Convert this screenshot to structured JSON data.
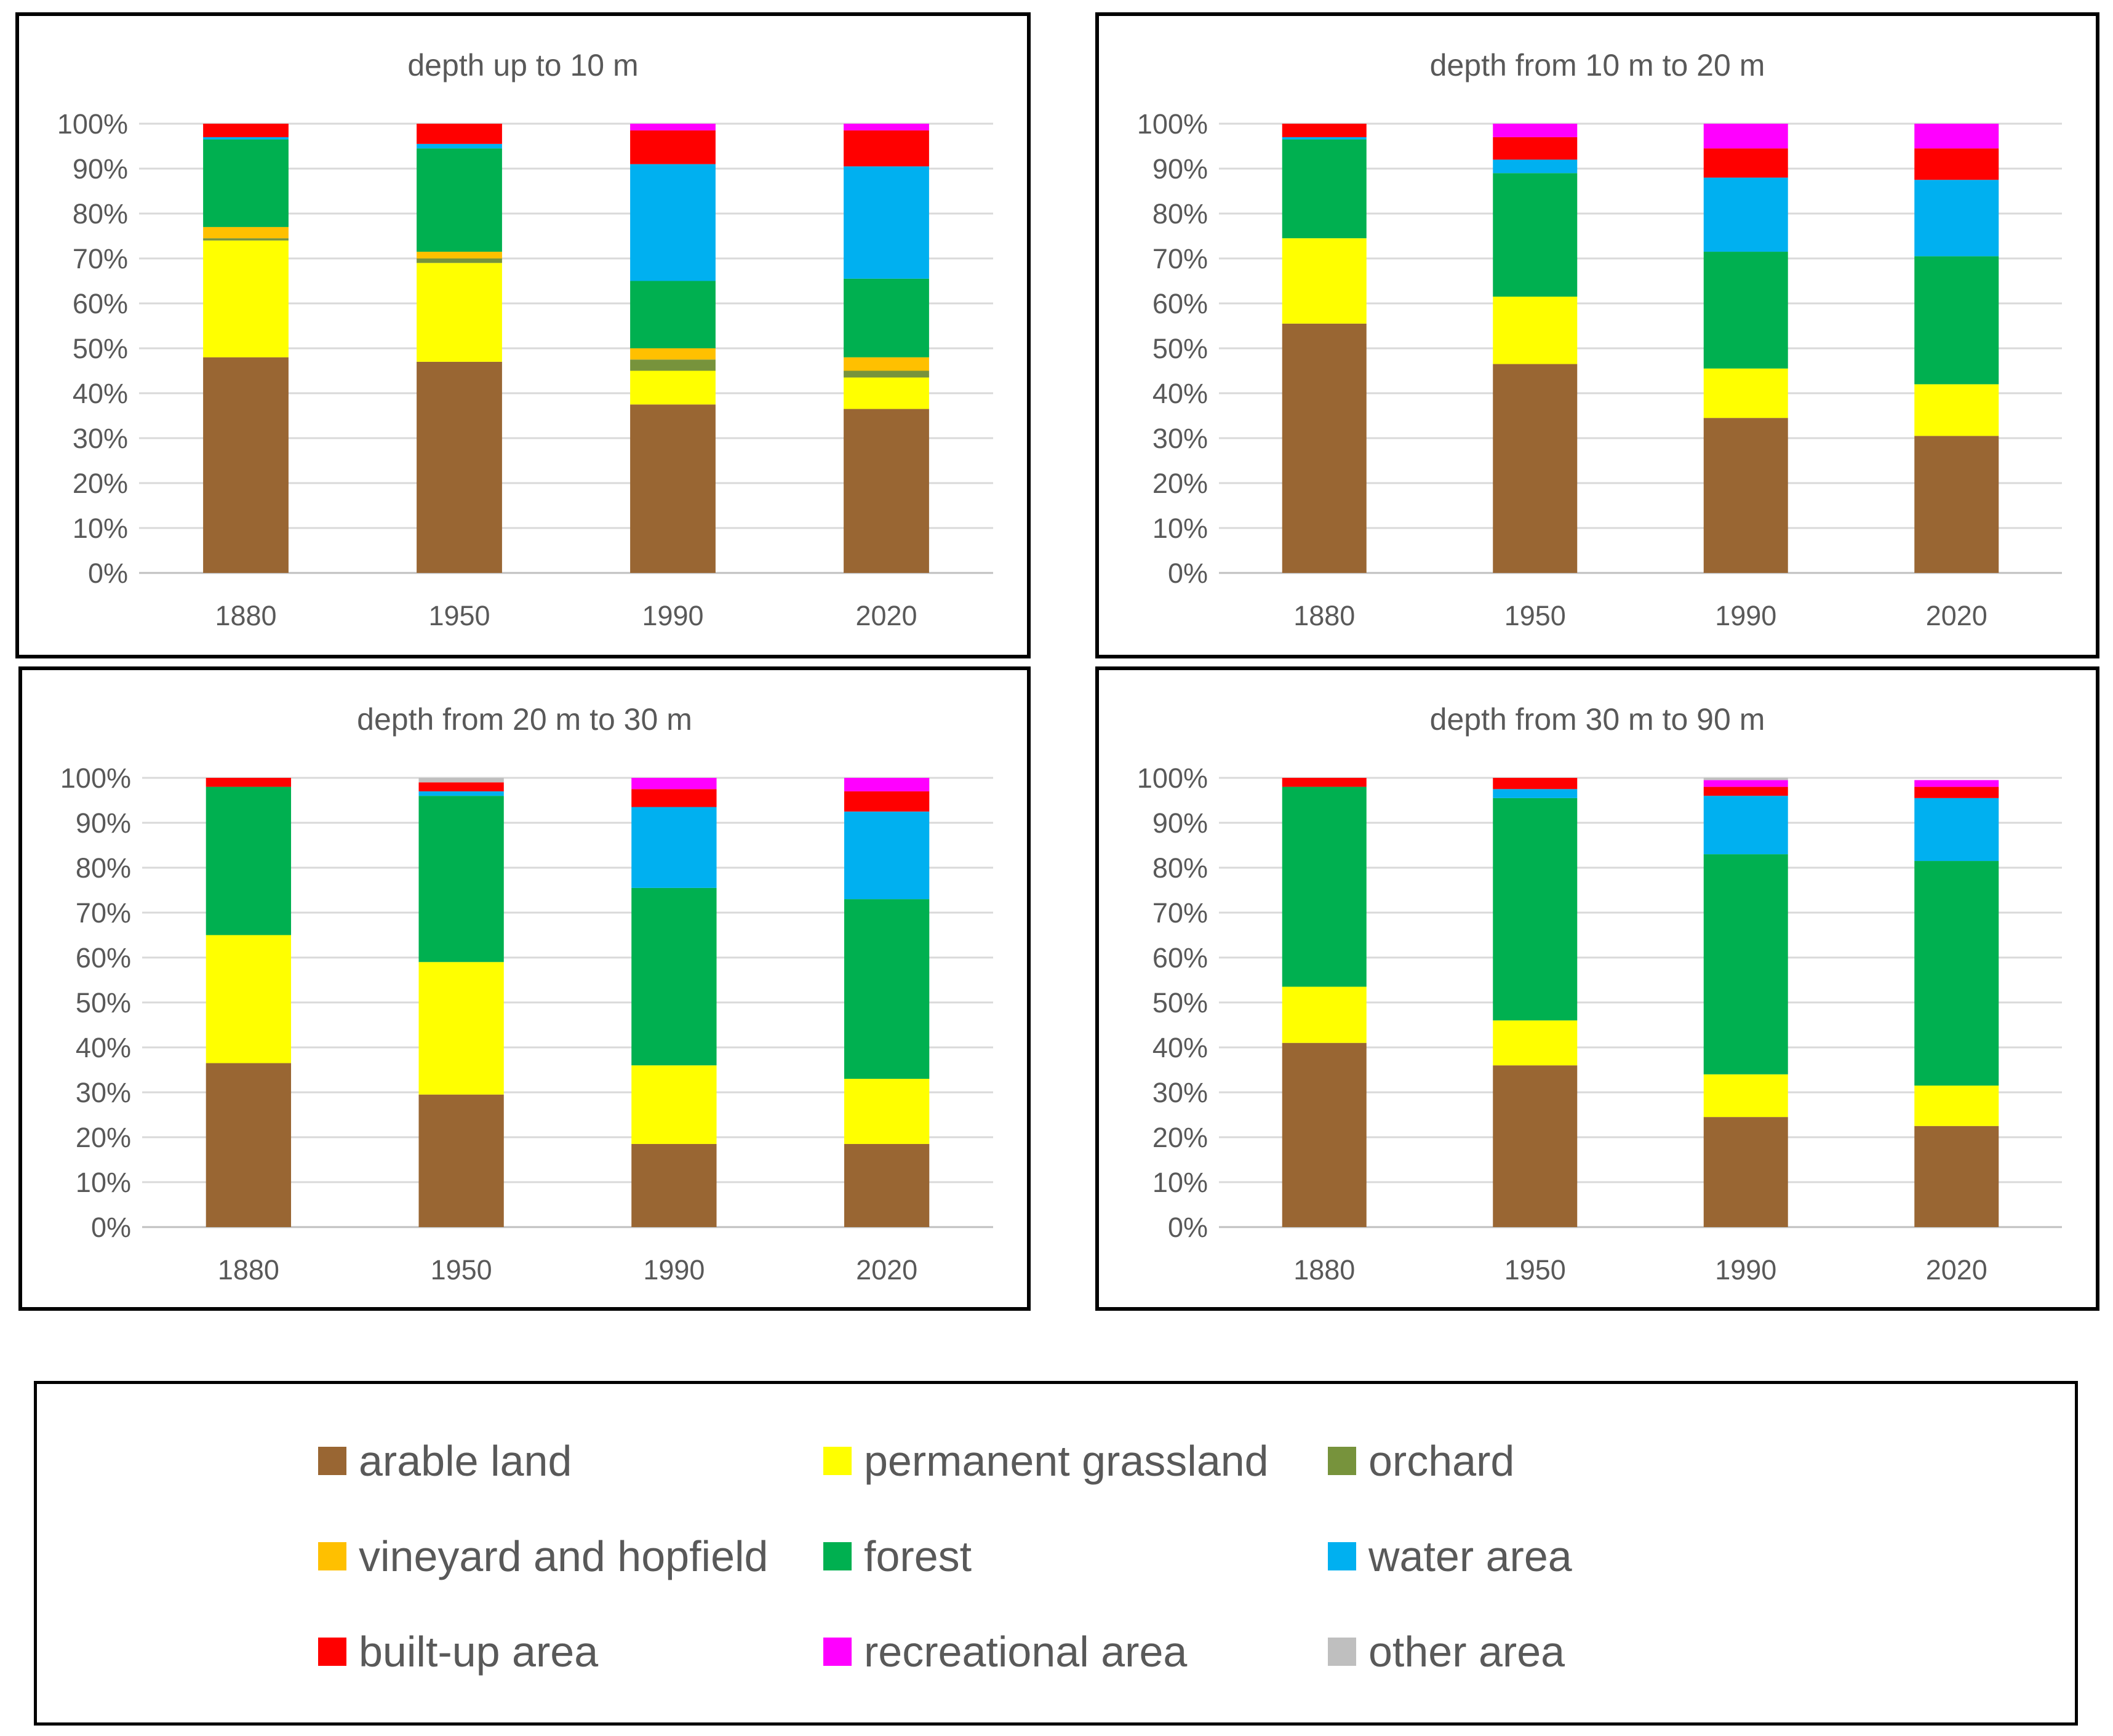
{
  "categories": [
    {
      "key": "arable",
      "name": "arable land",
      "color": "#996633"
    },
    {
      "key": "grassland",
      "name": "permanent grassland",
      "color": "#FFFF00"
    },
    {
      "key": "orchard",
      "name": "orchard",
      "color": "#77933C"
    },
    {
      "key": "vineyard",
      "name": "vineyard and hopfield",
      "color": "#FFC000"
    },
    {
      "key": "forest",
      "name": "forest",
      "color": "#00B050"
    },
    {
      "key": "water",
      "name": "water area",
      "color": "#00B0F0"
    },
    {
      "key": "builtup",
      "name": "built-up area",
      "color": "#FF0000"
    },
    {
      "key": "recreational",
      "name": "recreational area",
      "color": "#FF00FF"
    },
    {
      "key": "other",
      "name": "other area",
      "color": "#BFBFBF"
    }
  ],
  "chart_data": [
    {
      "type": "bar",
      "stacked": true,
      "title": "depth up to 10 m",
      "categories": [
        "1880",
        "1950",
        "1990",
        "2020"
      ],
      "y_ticks": [
        "0%",
        "10%",
        "20%",
        "30%",
        "40%",
        "50%",
        "60%",
        "70%",
        "80%",
        "90%",
        "100%"
      ],
      "ylim": [
        0,
        100
      ],
      "series": [
        {
          "name": "arable land",
          "values": [
            48,
            47,
            37.5,
            36.5
          ]
        },
        {
          "name": "permanent grassland",
          "values": [
            26,
            22,
            7.5,
            7
          ]
        },
        {
          "name": "orchard",
          "values": [
            0.5,
            1,
            2.5,
            1.5
          ]
        },
        {
          "name": "vineyard and hopfield",
          "values": [
            2.5,
            1.5,
            2.5,
            3
          ]
        },
        {
          "name": "forest",
          "values": [
            19.5,
            23,
            15,
            17.5
          ]
        },
        {
          "name": "water area",
          "values": [
            0.5,
            1,
            26,
            25
          ]
        },
        {
          "name": "built-up area",
          "values": [
            3,
            4.5,
            7.5,
            8
          ]
        },
        {
          "name": "recreational area",
          "values": [
            0,
            0,
            1.5,
            1.5
          ]
        },
        {
          "name": "other area",
          "values": [
            0,
            0,
            0,
            0
          ]
        }
      ]
    },
    {
      "type": "bar",
      "stacked": true,
      "title": "depth from 10 m to 20 m",
      "categories": [
        "1880",
        "1950",
        "1990",
        "2020"
      ],
      "y_ticks": [
        "0%",
        "10%",
        "20%",
        "30%",
        "40%",
        "50%",
        "60%",
        "70%",
        "80%",
        "90%",
        "100%"
      ],
      "ylim": [
        0,
        100
      ],
      "series": [
        {
          "name": "arable land",
          "values": [
            55.5,
            46.5,
            34.5,
            30.5
          ]
        },
        {
          "name": "permanent grassland",
          "values": [
            19,
            15,
            11,
            11.5
          ]
        },
        {
          "name": "orchard",
          "values": [
            0,
            0,
            0,
            0
          ]
        },
        {
          "name": "vineyard and hopfield",
          "values": [
            0,
            0,
            0,
            0
          ]
        },
        {
          "name": "forest",
          "values": [
            22,
            27.5,
            26,
            28.5
          ]
        },
        {
          "name": "water area",
          "values": [
            0.5,
            3,
            16.5,
            17
          ]
        },
        {
          "name": "built-up area",
          "values": [
            3,
            5,
            6.5,
            7
          ]
        },
        {
          "name": "recreational area",
          "values": [
            0,
            3,
            5.5,
            5.5
          ]
        },
        {
          "name": "other area",
          "values": [
            0,
            0,
            0,
            0
          ]
        }
      ]
    },
    {
      "type": "bar",
      "stacked": true,
      "title": "depth from 20 m to 30 m",
      "categories": [
        "1880",
        "1950",
        "1990",
        "2020"
      ],
      "y_ticks": [
        "0%",
        "10%",
        "20%",
        "30%",
        "40%",
        "50%",
        "60%",
        "70%",
        "80%",
        "90%",
        "100%"
      ],
      "ylim": [
        0,
        100
      ],
      "series": [
        {
          "name": "arable land",
          "values": [
            36.5,
            29.5,
            18.5,
            18.5
          ]
        },
        {
          "name": "permanent grassland",
          "values": [
            28.5,
            29.5,
            17.5,
            14.5
          ]
        },
        {
          "name": "orchard",
          "values": [
            0,
            0,
            0,
            0
          ]
        },
        {
          "name": "vineyard and hopfield",
          "values": [
            0,
            0,
            0,
            0
          ]
        },
        {
          "name": "forest",
          "values": [
            33,
            37,
            39.5,
            40
          ]
        },
        {
          "name": "water area",
          "values": [
            0,
            1,
            18,
            19.5
          ]
        },
        {
          "name": "built-up area",
          "values": [
            2,
            2,
            4,
            4.5
          ]
        },
        {
          "name": "recreational area",
          "values": [
            0,
            0,
            2.5,
            3
          ]
        },
        {
          "name": "other area",
          "values": [
            0,
            1,
            0,
            0
          ]
        }
      ]
    },
    {
      "type": "bar",
      "stacked": true,
      "title": "depth from 30 m to 90 m",
      "categories": [
        "1880",
        "1950",
        "1990",
        "2020"
      ],
      "y_ticks": [
        "0%",
        "10%",
        "20%",
        "30%",
        "40%",
        "50%",
        "60%",
        "70%",
        "80%",
        "90%",
        "100%"
      ],
      "ylim": [
        0,
        100
      ],
      "series": [
        {
          "name": "arable land",
          "values": [
            41,
            36,
            24.5,
            22.5
          ]
        },
        {
          "name": "permanent grassland",
          "values": [
            12.5,
            10,
            9.5,
            9
          ]
        },
        {
          "name": "orchard",
          "values": [
            0,
            0,
            0,
            0
          ]
        },
        {
          "name": "vineyard and hopfield",
          "values": [
            0,
            0,
            0,
            0
          ]
        },
        {
          "name": "forest",
          "values": [
            44.5,
            49.5,
            49,
            50
          ]
        },
        {
          "name": "water area",
          "values": [
            0,
            2,
            13,
            14
          ]
        },
        {
          "name": "built-up area",
          "values": [
            2,
            2.5,
            2,
            2.5
          ]
        },
        {
          "name": "recreational area",
          "values": [
            0,
            0,
            1.5,
            1.5
          ]
        },
        {
          "name": "other area",
          "values": [
            0,
            0,
            0.5,
            0
          ]
        }
      ]
    }
  ]
}
